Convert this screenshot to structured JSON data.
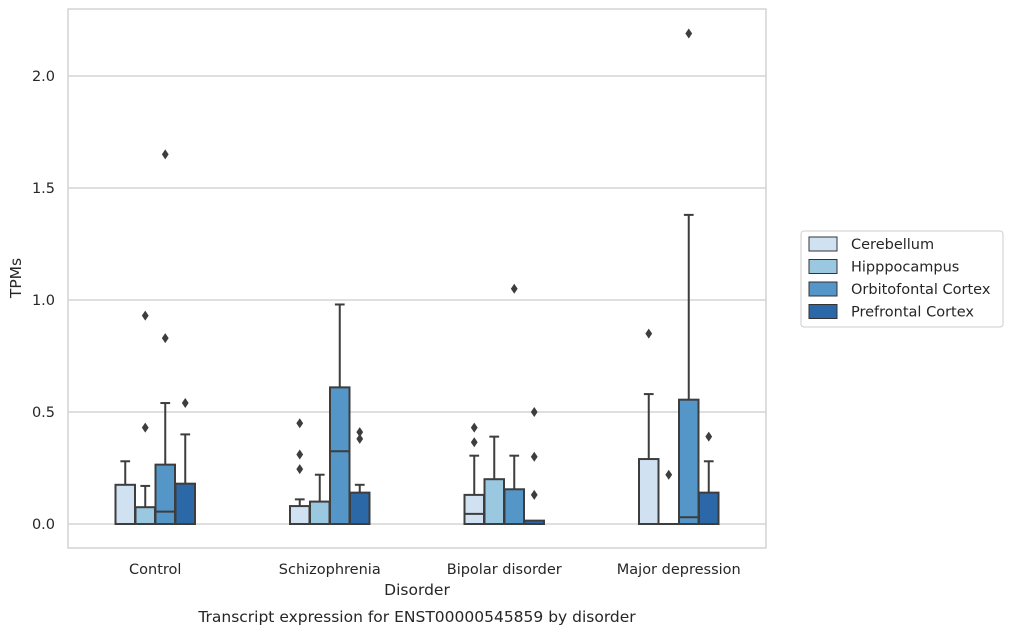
{
  "chart_data": {
    "type": "boxplot",
    "caption": "Transcript expression for ENST00000545859 by disorder",
    "xlabel": "Disorder",
    "ylabel": "TPMs",
    "ylim": [
      -0.1,
      2.3
    ],
    "yticks": [
      "0.0",
      "0.5",
      "1.0",
      "1.5",
      "2.0"
    ],
    "ytick_values": [
      0.0,
      0.5,
      1.0,
      1.5,
      2.0
    ],
    "grid": "horizontal",
    "legend_position": "right",
    "categories": [
      "Control",
      "Schizophrenia",
      "Bipolar disorder",
      "Major depression"
    ],
    "series": [
      {
        "name": "Cerebellum",
        "color": "#d0e1f2",
        "boxes": [
          {
            "q1": 0.0,
            "median": 0.0,
            "q3": 0.175,
            "whisker_low": 0.0,
            "whisker_high": 0.28,
            "outliers": []
          },
          {
            "q1": 0.0,
            "median": 0.0,
            "q3": 0.08,
            "whisker_low": 0.0,
            "whisker_high": 0.11,
            "outliers": [
              0.45,
              0.31,
              0.245
            ]
          },
          {
            "q1": 0.0,
            "median": 0.045,
            "q3": 0.13,
            "whisker_low": 0.0,
            "whisker_high": 0.305,
            "outliers": [
              0.43,
              0.365
            ]
          },
          {
            "q1": 0.0,
            "median": 0.0,
            "q3": 0.29,
            "whisker_low": 0.0,
            "whisker_high": 0.58,
            "outliers": [
              0.85
            ]
          }
        ]
      },
      {
        "name": "Hipppocampus",
        "color": "#9ac8e0",
        "boxes": [
          {
            "q1": 0.0,
            "median": 0.0,
            "q3": 0.075,
            "whisker_low": 0.0,
            "whisker_high": 0.17,
            "outliers": [
              0.93,
              0.43
            ]
          },
          {
            "q1": 0.0,
            "median": 0.0,
            "q3": 0.1,
            "whisker_low": 0.0,
            "whisker_high": 0.22,
            "outliers": []
          },
          {
            "q1": 0.0,
            "median": 0.0,
            "q3": 0.2,
            "whisker_low": 0.0,
            "whisker_high": 0.39,
            "outliers": []
          },
          {
            "q1": 0.0,
            "median": 0.0,
            "q3": 0.0,
            "whisker_low": 0.0,
            "whisker_high": 0.0,
            "outliers": [
              0.22
            ]
          }
        ]
      },
      {
        "name": "Orbitofontal Cortex",
        "color": "#5596c9",
        "boxes": [
          {
            "q1": 0.0,
            "median": 0.055,
            "q3": 0.265,
            "whisker_low": 0.0,
            "whisker_high": 0.54,
            "outliers": [
              1.65,
              0.83
            ]
          },
          {
            "q1": 0.0,
            "median": 0.325,
            "q3": 0.61,
            "whisker_low": 0.0,
            "whisker_high": 0.98,
            "outliers": []
          },
          {
            "q1": 0.0,
            "median": 0.0,
            "q3": 0.155,
            "whisker_low": 0.0,
            "whisker_high": 0.305,
            "outliers": [
              1.05
            ]
          },
          {
            "q1": 0.0,
            "median": 0.03,
            "q3": 0.555,
            "whisker_low": 0.0,
            "whisker_high": 1.38,
            "outliers": [
              2.19
            ]
          }
        ]
      },
      {
        "name": "Prefrontal Cortex",
        "color": "#2b68a8",
        "boxes": [
          {
            "q1": 0.0,
            "median": 0.0,
            "q3": 0.18,
            "whisker_low": 0.0,
            "whisker_high": 0.4,
            "outliers": [
              0.54
            ]
          },
          {
            "q1": 0.0,
            "median": 0.0,
            "q3": 0.14,
            "whisker_low": 0.0,
            "whisker_high": 0.175,
            "outliers": [
              0.41,
              0.38
            ]
          },
          {
            "q1": 0.0,
            "median": 0.0,
            "q3": 0.015,
            "whisker_low": 0.0,
            "whisker_high": 0.015,
            "outliers": [
              0.5,
              0.3,
              0.13
            ]
          },
          {
            "q1": 0.0,
            "median": 0.0,
            "q3": 0.14,
            "whisker_low": 0.0,
            "whisker_high": 0.28,
            "outliers": [
              0.39
            ]
          }
        ]
      }
    ]
  }
}
